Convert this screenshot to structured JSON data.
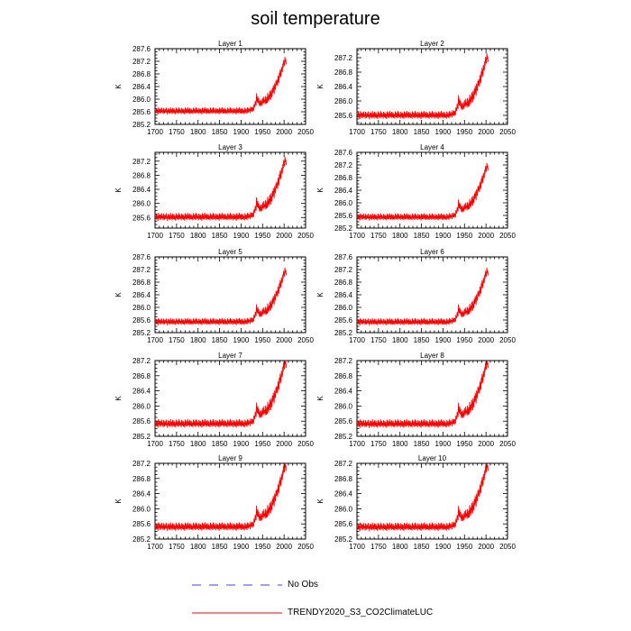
{
  "title": "soil temperature",
  "colors": {
    "model": "#ff0000",
    "obs": "#3c3cff",
    "axis": "#000000"
  },
  "legend": [
    {
      "label": "No Obs",
      "style": "dashed",
      "color": "#3c3cff"
    },
    {
      "label": "TRENDY2020_S3_CO2ClimateLUC",
      "style": "solid",
      "color": "#ff0000"
    }
  ],
  "chart_data": [
    {
      "type": "line",
      "title": "Layer 1",
      "ylabel": "K",
      "xlim": [
        1700,
        2050
      ],
      "ylim": [
        285.2,
        287.6
      ],
      "xticks": [
        1700,
        1750,
        1800,
        1850,
        1900,
        1950,
        2000,
        2050
      ],
      "yticks": [
        285.2,
        285.6,
        286.0,
        286.4,
        286.8,
        287.2,
        287.6
      ],
      "series": [
        {
          "name": "TRENDY2020_S3_CO2ClimateLUC",
          "start_year": 1701,
          "end_year": 2019,
          "values": [
            285.62,
            285.57,
            285.71,
            285.55,
            285.68,
            285.6,
            285.52,
            285.74,
            285.63,
            285.58,
            285.69,
            285.54,
            285.7,
            285.61,
            285.56,
            285.73,
            285.59,
            285.65,
            285.53,
            285.72,
            285.6,
            285.55,
            285.69,
            285.62,
            285.57,
            285.73,
            285.58,
            285.64,
            285.51,
            285.71,
            285.62,
            285.56,
            285.7,
            285.6,
            285.54,
            285.74,
            285.61,
            285.57,
            285.68,
            285.53,
            285.72,
            285.6,
            285.58,
            285.71,
            285.55,
            285.66,
            285.59,
            285.52,
            285.73,
            285.62,
            285.57,
            285.69,
            285.6,
            285.54,
            285.74,
            285.63,
            285.56,
            285.7,
            285.58,
            285.65,
            285.53,
            285.72,
            285.61,
            285.57,
            285.7,
            285.55,
            285.67,
            285.59,
            285.52,
            285.73,
            285.62,
            285.56,
            285.71,
            285.6,
            285.55,
            285.74,
            285.61,
            285.58,
            285.69,
            285.54,
            285.72,
            285.6,
            285.57,
            285.7,
            285.55,
            285.66,
            285.6,
            285.53,
            285.73,
            285.62,
            285.57,
            285.7,
            285.59,
            285.54,
            285.74,
            285.63,
            285.56,
            285.71,
            285.58,
            285.65,
            285.53,
            285.72,
            285.61,
            285.57,
            285.7,
            285.55,
            285.68,
            285.6,
            285.52,
            285.73,
            285.62,
            285.56,
            285.71,
            285.6,
            285.55,
            285.74,
            285.61,
            285.58,
            285.69,
            285.54,
            285.72,
            285.6,
            285.57,
            285.7,
            285.55,
            285.66,
            285.6,
            285.53,
            285.73,
            285.62,
            285.57,
            285.7,
            285.59,
            285.54,
            285.74,
            285.63,
            285.56,
            285.71,
            285.58,
            285.65,
            285.53,
            285.72,
            285.61,
            285.57,
            285.7,
            285.55,
            285.68,
            285.6,
            285.52,
            285.73,
            285.62,
            285.56,
            285.71,
            285.6,
            285.55,
            285.74,
            285.61,
            285.58,
            285.69,
            285.54,
            285.72,
            285.6,
            285.57,
            285.7,
            285.55,
            285.66,
            285.6,
            285.53,
            285.73,
            285.62,
            285.57,
            285.7,
            285.59,
            285.54,
            285.74,
            285.63,
            285.56,
            285.71,
            285.58,
            285.65,
            285.53,
            285.72,
            285.61,
            285.57,
            285.7,
            285.55,
            285.68,
            285.6,
            285.52,
            285.73,
            285.62,
            285.56,
            285.71,
            285.6,
            285.55,
            285.74,
            285.61,
            285.58,
            285.69,
            285.54,
            285.72,
            285.6,
            285.57,
            285.7,
            285.55,
            285.66,
            285.6,
            285.53,
            285.73,
            285.62,
            285.57,
            285.7,
            285.59,
            285.54,
            285.74,
            285.63,
            285.58,
            285.72,
            285.62,
            285.68,
            285.56,
            285.76,
            285.66,
            285.62,
            285.75,
            285.6,
            285.74,
            285.68,
            285.62,
            285.84,
            285.78,
            285.74,
            285.94,
            285.86,
            285.8,
            286.18,
            285.98,
            285.9,
            286.08,
            285.88,
            286.02,
            285.86,
            285.78,
            285.96,
            285.84,
            285.78,
            285.98,
            285.86,
            285.8,
            286.04,
            285.9,
            285.86,
            286.08,
            285.9,
            285.98,
            285.84,
            286.1,
            285.92,
            285.86,
            286.06,
            285.88,
            286.2,
            286.04,
            285.92,
            286.14,
            285.98,
            286.26,
            286.12,
            285.98,
            286.3,
            286.12,
            286.06,
            286.36,
            286.2,
            286.44,
            286.3,
            286.16,
            286.5,
            286.38,
            286.3,
            286.58,
            286.44,
            286.62,
            286.5,
            286.42,
            286.74,
            286.6,
            286.52,
            286.84,
            286.68,
            286.94,
            286.8,
            286.7,
            287.02,
            286.9,
            286.86,
            287.12,
            287.0,
            287.24,
            287.12,
            287.06,
            287.34,
            287.18,
            287.26,
            287.1
          ]
        }
      ]
    },
    {
      "type": "line",
      "title": "Layer 2",
      "ylabel": "K",
      "xlim": [
        1700,
        2050
      ],
      "ylim": [
        285.35,
        287.45
      ],
      "xticks": [
        1700,
        1750,
        1800,
        1850,
        1900,
        1950,
        2000,
        2050
      ],
      "yticks": [
        285.6,
        286.0,
        286.4,
        286.8,
        287.2
      ],
      "series": [
        {
          "name": "TRENDY2020_S3_CO2ClimateLUC",
          "start_year": 1701,
          "end_year": 2019,
          "same_shape_as": "Layer 1"
        }
      ]
    },
    {
      "type": "line",
      "title": "Layer 3",
      "ylabel": "K",
      "xlim": [
        1700,
        2050
      ],
      "ylim": [
        285.3,
        287.45
      ],
      "xticks": [
        1700,
        1750,
        1800,
        1850,
        1900,
        1950,
        2000,
        2050
      ],
      "yticks": [
        285.6,
        286.0,
        286.4,
        286.8,
        287.2
      ],
      "series": [
        {
          "name": "TRENDY2020_S3_CO2ClimateLUC",
          "start_year": 1701,
          "end_year": 2019,
          "same_shape_as": "Layer 1"
        }
      ]
    },
    {
      "type": "line",
      "title": "Layer 4",
      "ylabel": "K",
      "xlim": [
        1700,
        2050
      ],
      "ylim": [
        285.2,
        287.6
      ],
      "xticks": [
        1700,
        1750,
        1800,
        1850,
        1900,
        1950,
        2000,
        2050
      ],
      "yticks": [
        285.2,
        285.6,
        286.0,
        286.4,
        286.8,
        287.2,
        287.6
      ],
      "series": [
        {
          "name": "TRENDY2020_S3_CO2ClimateLUC",
          "start_year": 1701,
          "end_year": 2019,
          "same_shape_as": "Layer 1"
        }
      ]
    },
    {
      "type": "line",
      "title": "Layer 5",
      "ylabel": "K",
      "xlim": [
        1700,
        2050
      ],
      "ylim": [
        285.2,
        287.6
      ],
      "xticks": [
        1700,
        1750,
        1800,
        1850,
        1900,
        1950,
        2000,
        2050
      ],
      "yticks": [
        285.2,
        285.6,
        286.0,
        286.4,
        286.8,
        287.2,
        287.6
      ],
      "series": [
        {
          "name": "TRENDY2020_S3_CO2ClimateLUC",
          "start_year": 1701,
          "end_year": 2019,
          "same_shape_as": "Layer 1"
        }
      ]
    },
    {
      "type": "line",
      "title": "Layer 6",
      "ylabel": "K",
      "xlim": [
        1700,
        2050
      ],
      "ylim": [
        285.2,
        287.6
      ],
      "xticks": [
        1700,
        1750,
        1800,
        1850,
        1900,
        1950,
        2000,
        2050
      ],
      "yticks": [
        285.2,
        285.6,
        286.0,
        286.4,
        286.8,
        287.2,
        287.6
      ],
      "series": [
        {
          "name": "TRENDY2020_S3_CO2ClimateLUC",
          "start_year": 1701,
          "end_year": 2019,
          "same_shape_as": "Layer 1"
        }
      ]
    },
    {
      "type": "line",
      "title": "Layer 7",
      "ylabel": "K",
      "xlim": [
        1700,
        2050
      ],
      "ylim": [
        285.2,
        287.2
      ],
      "xticks": [
        1700,
        1750,
        1800,
        1850,
        1900,
        1950,
        2000,
        2050
      ],
      "yticks": [
        285.2,
        285.6,
        286.0,
        286.4,
        286.8,
        287.2
      ],
      "series": [
        {
          "name": "TRENDY2020_S3_CO2ClimateLUC",
          "start_year": 1701,
          "end_year": 2019,
          "same_shape_as": "Layer 1"
        }
      ]
    },
    {
      "type": "line",
      "title": "Layer 8",
      "ylabel": "K",
      "xlim": [
        1700,
        2050
      ],
      "ylim": [
        285.2,
        287.2
      ],
      "xticks": [
        1700,
        1750,
        1800,
        1850,
        1900,
        1950,
        2000,
        2050
      ],
      "yticks": [
        285.2,
        285.6,
        286.0,
        286.4,
        286.8,
        287.2
      ],
      "series": [
        {
          "name": "TRENDY2020_S3_CO2ClimateLUC",
          "start_year": 1701,
          "end_year": 2019,
          "same_shape_as": "Layer 1"
        }
      ]
    },
    {
      "type": "line",
      "title": "Layer 9",
      "ylabel": "K",
      "xlim": [
        1700,
        2050
      ],
      "ylim": [
        285.2,
        287.2
      ],
      "xticks": [
        1700,
        1750,
        1800,
        1850,
        1900,
        1950,
        2000,
        2050
      ],
      "yticks": [
        285.2,
        285.6,
        286.0,
        286.4,
        286.8,
        287.2
      ],
      "series": [
        {
          "name": "TRENDY2020_S3_CO2ClimateLUC",
          "start_year": 1701,
          "end_year": 2019,
          "same_shape_as": "Layer 1"
        }
      ]
    },
    {
      "type": "line",
      "title": "Layer 10",
      "ylabel": "K",
      "xlim": [
        1700,
        2050
      ],
      "ylim": [
        285.2,
        287.2
      ],
      "xticks": [
        1700,
        1750,
        1800,
        1850,
        1900,
        1950,
        2000,
        2050
      ],
      "yticks": [
        285.2,
        285.6,
        286.0,
        286.4,
        286.8,
        287.2
      ],
      "series": [
        {
          "name": "TRENDY2020_S3_CO2ClimateLUC",
          "start_year": 1701,
          "end_year": 2019,
          "same_shape_as": "Layer 1"
        }
      ]
    }
  ]
}
